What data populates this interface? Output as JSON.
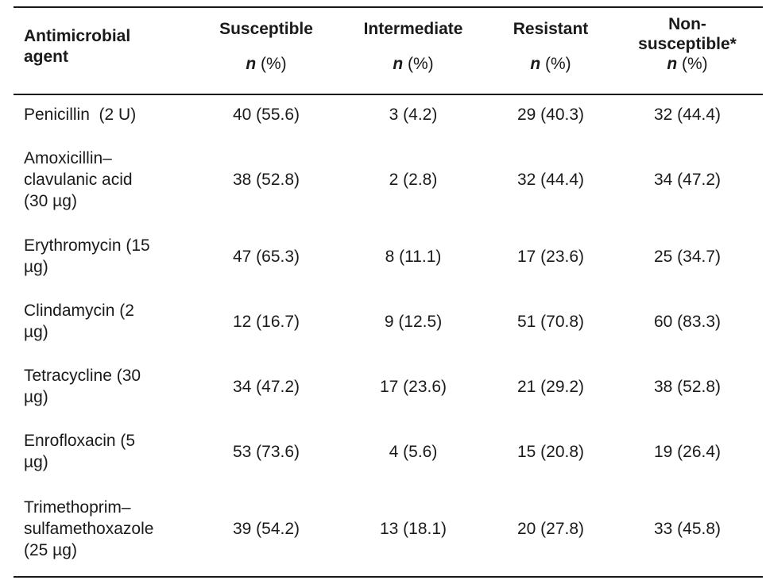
{
  "table": {
    "header": {
      "agent": [
        "Antimicrobial",
        "agent"
      ],
      "columns": [
        {
          "title": [
            "Susceptible"
          ],
          "n": "n",
          "pct": "(%)"
        },
        {
          "title": [
            "Intermediate"
          ],
          "n": "n",
          "pct": "(%)"
        },
        {
          "title": [
            "Resistant"
          ],
          "n": "n",
          "pct": "(%)"
        },
        {
          "title": [
            "Non-",
            "susceptible*"
          ],
          "n": "n",
          "pct": "(%)"
        }
      ]
    },
    "rows": [
      {
        "agent": [
          "Penicillin  (2 U)"
        ],
        "values": [
          "40 (55.6)",
          "3 (4.2)",
          "29 (40.3)",
          "32 (44.4)"
        ]
      },
      {
        "agent": [
          "Amoxicillin–",
          "clavulanic acid",
          "(30 µg)"
        ],
        "values": [
          "38 (52.8)",
          "2 (2.8)",
          "32 (44.4)",
          "34 (47.2)"
        ]
      },
      {
        "agent": [
          "Erythromycin (15",
          "µg)"
        ],
        "values": [
          "47 (65.3)",
          "8 (11.1)",
          "17 (23.6)",
          "25 (34.7)"
        ]
      },
      {
        "agent": [
          "Clindamycin (2",
          "µg)"
        ],
        "values": [
          "12 (16.7)",
          "9 (12.5)",
          "51 (70.8)",
          "60 (83.3)"
        ]
      },
      {
        "agent": [
          "Tetracycline (30",
          "µg)"
        ],
        "values": [
          "34 (47.2)",
          "17 (23.6)",
          "21 (29.2)",
          "38 (52.8)"
        ]
      },
      {
        "agent": [
          "Enrofloxacin (5",
          "µg)"
        ],
        "values": [
          "53 (73.6)",
          "4 (5.6)",
          "15 (20.8)",
          "19 (26.4)"
        ]
      },
      {
        "agent": [
          "Trimethoprim–",
          "sulfamethoxazole",
          "(25 µg)"
        ],
        "values": [
          "39 (54.2)",
          "13 (18.1)",
          "20 (27.8)",
          "33 (45.8)"
        ]
      }
    ]
  }
}
